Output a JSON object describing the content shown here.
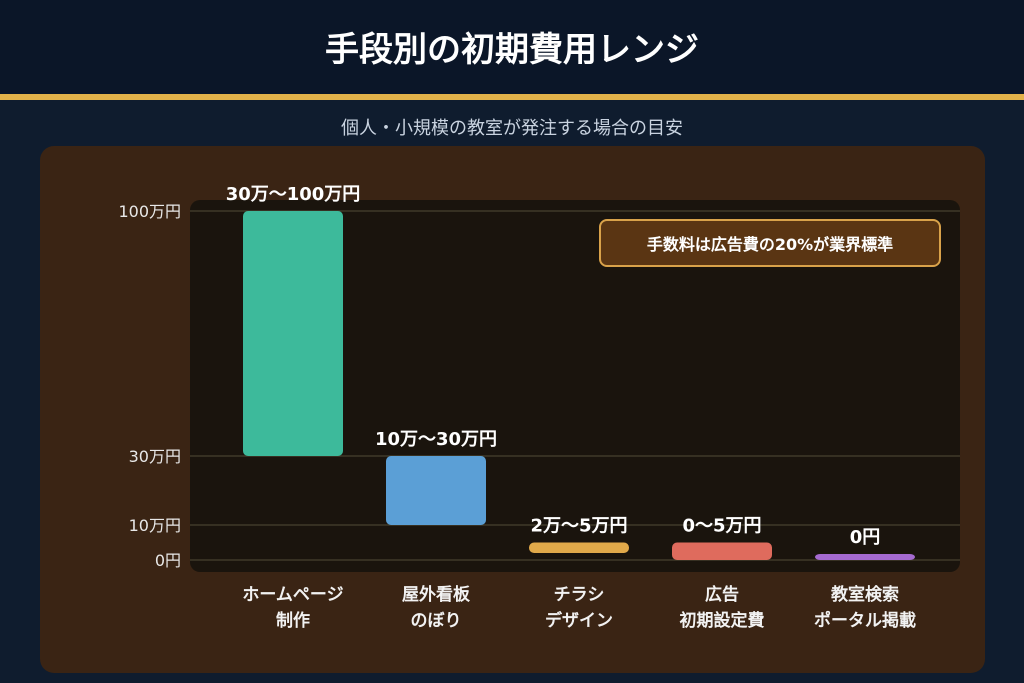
{
  "header": {
    "title": "手段別の初期費用レンジ",
    "subtitle": "個人・小規模の教室が発注する場合の目安"
  },
  "note": "手数料は広告費の20%が業界標準",
  "categories": [
    {
      "line1": "ホームページ",
      "line2": "制作"
    },
    {
      "line1": "屋外看板",
      "line2": "のぼり"
    },
    {
      "line1": "チラシ",
      "line2": "デザイン"
    },
    {
      "line1": "広告",
      "line2": "初期設定費"
    },
    {
      "line1": "教室検索",
      "line2": "ポータル掲載"
    }
  ],
  "colors": {
    "plot_bg": "#1a140d",
    "grid": "#3f3a2a",
    "axis_text": "#e8e8e8",
    "bar_text": "#ffffff",
    "series": [
      "#3dba9b",
      "#5b9fd6",
      "#e1a94a",
      "#df6b5d",
      "#a56ad0"
    ]
  },
  "chart_data": {
    "type": "bar",
    "subtype": "floating-range",
    "categories": [
      "ホームページ制作",
      "屋外看板のぼり",
      "チラシデザイン",
      "広告初期設定費",
      "教室検索ポータル掲載"
    ],
    "ranges": [
      [
        30,
        100
      ],
      [
        10,
        30
      ],
      [
        2,
        5
      ],
      [
        0,
        5
      ],
      [
        0,
        0
      ]
    ],
    "range_labels": [
      "30万〜100万円",
      "10万〜30万円",
      "2万〜5万円",
      "0〜5万円",
      "0円"
    ],
    "unit": "万円",
    "y_ticks": [
      0,
      10,
      30,
      100
    ],
    "y_tick_labels": [
      "0円",
      "10万円",
      "30万円",
      "100万円"
    ],
    "ylim": [
      0,
      100
    ],
    "grid": true
  }
}
